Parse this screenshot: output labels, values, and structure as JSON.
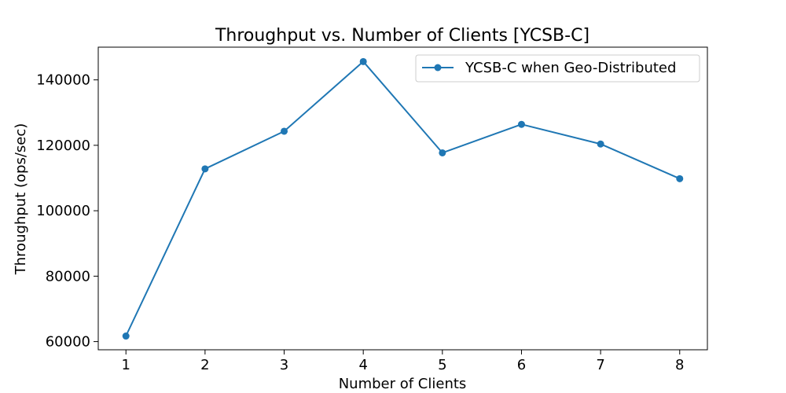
{
  "chart_data": {
    "type": "line",
    "title": "Throughput vs. Number of Clients [YCSB-C]",
    "xlabel": "Number of Clients",
    "ylabel": "Throughput (ops/sec)",
    "x": [
      1,
      2,
      3,
      4,
      5,
      6,
      7,
      8
    ],
    "xticks": [
      "1",
      "2",
      "3",
      "4",
      "5",
      "6",
      "7",
      "8"
    ],
    "yticks": [
      60000,
      80000,
      100000,
      120000,
      140000
    ],
    "yticklabels": [
      "60000",
      "80000",
      "100000",
      "120000",
      "140000"
    ],
    "xlim": [
      0.65,
      8.35
    ],
    "ylim": [
      57500,
      150000
    ],
    "grid": false,
    "legend_position": "top-right",
    "series": [
      {
        "name": "YCSB-C when Geo-Distributed",
        "color": "#1f77b4",
        "marker": "circle",
        "values": [
          61700,
          112800,
          124300,
          145600,
          117700,
          126400,
          120400,
          109800
        ]
      }
    ]
  }
}
